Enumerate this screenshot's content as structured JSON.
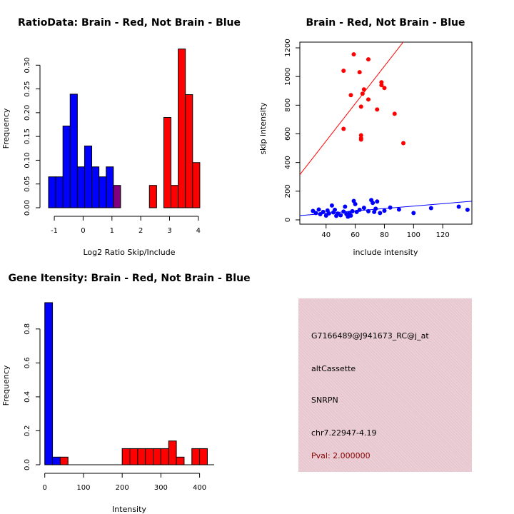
{
  "info": {
    "probe": "G7166489@J941673_RC@j_at",
    "event_type": "altCassette",
    "gene": "SNRPN",
    "location": "chr7.22947-4.19",
    "pval": "Pval: 2.000000",
    "panel_color": "#e8c8d0",
    "pval_color": "#8b0000"
  },
  "chart_data": [
    {
      "type": "bar",
      "title": "RatioData: Brain - Red, Not Brain - Blue",
      "xlabel": "Log2 Ratio Skip/Include",
      "ylabel": "Frequency",
      "xlim": [
        -1.2,
        4.35
      ],
      "ylim": [
        0,
        0.335
      ],
      "xticks": [
        -1,
        0,
        1,
        2,
        3,
        4
      ],
      "yticks": [
        0.0,
        0.05,
        0.1,
        0.15,
        0.2,
        0.25,
        0.3
      ],
      "ytick_labels": [
        "0.00",
        "0.05",
        "0.10",
        "0.15",
        "0.20",
        "0.25",
        "0.30"
      ],
      "bin_width": 0.25,
      "series": [
        {
          "name": "Not Brain",
          "color": "#0000ff",
          "bins": [
            [
              -1.2,
              0.065
            ],
            [
              -0.95,
              0.065
            ],
            [
              -0.7,
              0.172
            ],
            [
              -0.45,
              0.239
            ],
            [
              -0.2,
              0.086
            ],
            [
              0.05,
              0.13
            ],
            [
              0.3,
              0.086
            ],
            [
              0.55,
              0.065
            ],
            [
              0.8,
              0.086
            ]
          ]
        },
        {
          "name": "Brain",
          "color": "#ff0000",
          "bins": [
            [
              2.3,
              0.047
            ],
            [
              2.8,
              0.19
            ],
            [
              3.05,
              0.047
            ],
            [
              3.3,
              0.334
            ],
            [
              3.55,
              0.238
            ],
            [
              3.8,
              0.095
            ]
          ]
        }
      ],
      "overlap": {
        "color": "#800080",
        "bins": [
          [
            1.05,
            0.047
          ]
        ]
      }
    },
    {
      "type": "scatter",
      "title": "Brain - Red, Not Brain - Blue",
      "xlabel": "include intensity",
      "ylabel": "skip intensity",
      "xlim": [
        22,
        140
      ],
      "ylim": [
        -30,
        1240
      ],
      "xticks": [
        40,
        60,
        80,
        100,
        120
      ],
      "yticks": [
        0,
        200,
        400,
        600,
        800,
        1000,
        1200
      ],
      "series": [
        {
          "name": "Brain",
          "color": "#ff0000",
          "points": [
            [
              59,
              1155
            ],
            [
              69,
              1120
            ],
            [
              52,
              1040
            ],
            [
              63,
              1030
            ],
            [
              78,
              960
            ],
            [
              78,
              940
            ],
            [
              80,
              920
            ],
            [
              66,
              910
            ],
            [
              65,
              880
            ],
            [
              57,
              870
            ],
            [
              69,
              840
            ],
            [
              64,
              790
            ],
            [
              75,
              770
            ],
            [
              87,
              740
            ],
            [
              52,
              635
            ],
            [
              64,
              590
            ],
            [
              64,
              570
            ],
            [
              64,
              560
            ],
            [
              93,
              535
            ]
          ],
          "fit": [
            [
              22,
              315
            ],
            [
              140,
              1855
            ]
          ]
        },
        {
          "name": "Not Brain",
          "color": "#0000ff",
          "points": [
            [
              31,
              62
            ],
            [
              33,
              48
            ],
            [
              35,
              72
            ],
            [
              36,
              40
            ],
            [
              38,
              55
            ],
            [
              40,
              30
            ],
            [
              41,
              65
            ],
            [
              42,
              45
            ],
            [
              44,
              100
            ],
            [
              45,
              52
            ],
            [
              46,
              70
            ],
            [
              47,
              28
            ],
            [
              48,
              44
            ],
            [
              50,
              32
            ],
            [
              52,
              58
            ],
            [
              53,
              92
            ],
            [
              54,
              40
            ],
            [
              55,
              22
            ],
            [
              56,
              48
            ],
            [
              57,
              30
            ],
            [
              58,
              60
            ],
            [
              59,
              132
            ],
            [
              60,
              110
            ],
            [
              61,
              55
            ],
            [
              63,
              70
            ],
            [
              66,
              84
            ],
            [
              69,
              60
            ],
            [
              71,
              138
            ],
            [
              72,
              118
            ],
            [
              73,
              55
            ],
            [
              74,
              78
            ],
            [
              75,
              128
            ],
            [
              77,
              48
            ],
            [
              80,
              64
            ],
            [
              84,
              86
            ],
            [
              90,
              72
            ],
            [
              100,
              48
            ],
            [
              112,
              82
            ],
            [
              131,
              92
            ],
            [
              137,
              70
            ]
          ],
          "fit": [
            [
              22,
              30
            ],
            [
              140,
              130
            ]
          ]
        }
      ]
    },
    {
      "type": "bar",
      "title": "Gene Itensity: Brain - Red, Not Brain - Blue",
      "xlabel": "Intensity",
      "ylabel": "Frequency",
      "xlim": [
        -5,
        445
      ],
      "ylim": [
        0,
        0.98
      ],
      "xticks": [
        0,
        100,
        200,
        300,
        400
      ],
      "yticks": [
        0.0,
        0.2,
        0.4,
        0.6,
        0.8
      ],
      "ytick_labels": [
        "0.0",
        "0.2",
        "0.4",
        "0.6",
        "0.8"
      ],
      "bin_width": 20,
      "series": [
        {
          "name": "Not Brain",
          "color": "#0000ff",
          "bins": [
            [
              0,
              0.955
            ],
            [
              20,
              0.045
            ]
          ]
        },
        {
          "name": "Brain",
          "color": "#ff0000",
          "bins": [
            [
              40,
              0.045
            ],
            [
              200,
              0.095
            ],
            [
              220,
              0.095
            ],
            [
              240,
              0.095
            ],
            [
              260,
              0.095
            ],
            [
              280,
              0.095
            ],
            [
              300,
              0.095
            ],
            [
              320,
              0.14
            ],
            [
              340,
              0.045
            ],
            [
              380,
              0.095
            ],
            [
              400,
              0.095
            ]
          ]
        }
      ]
    }
  ]
}
